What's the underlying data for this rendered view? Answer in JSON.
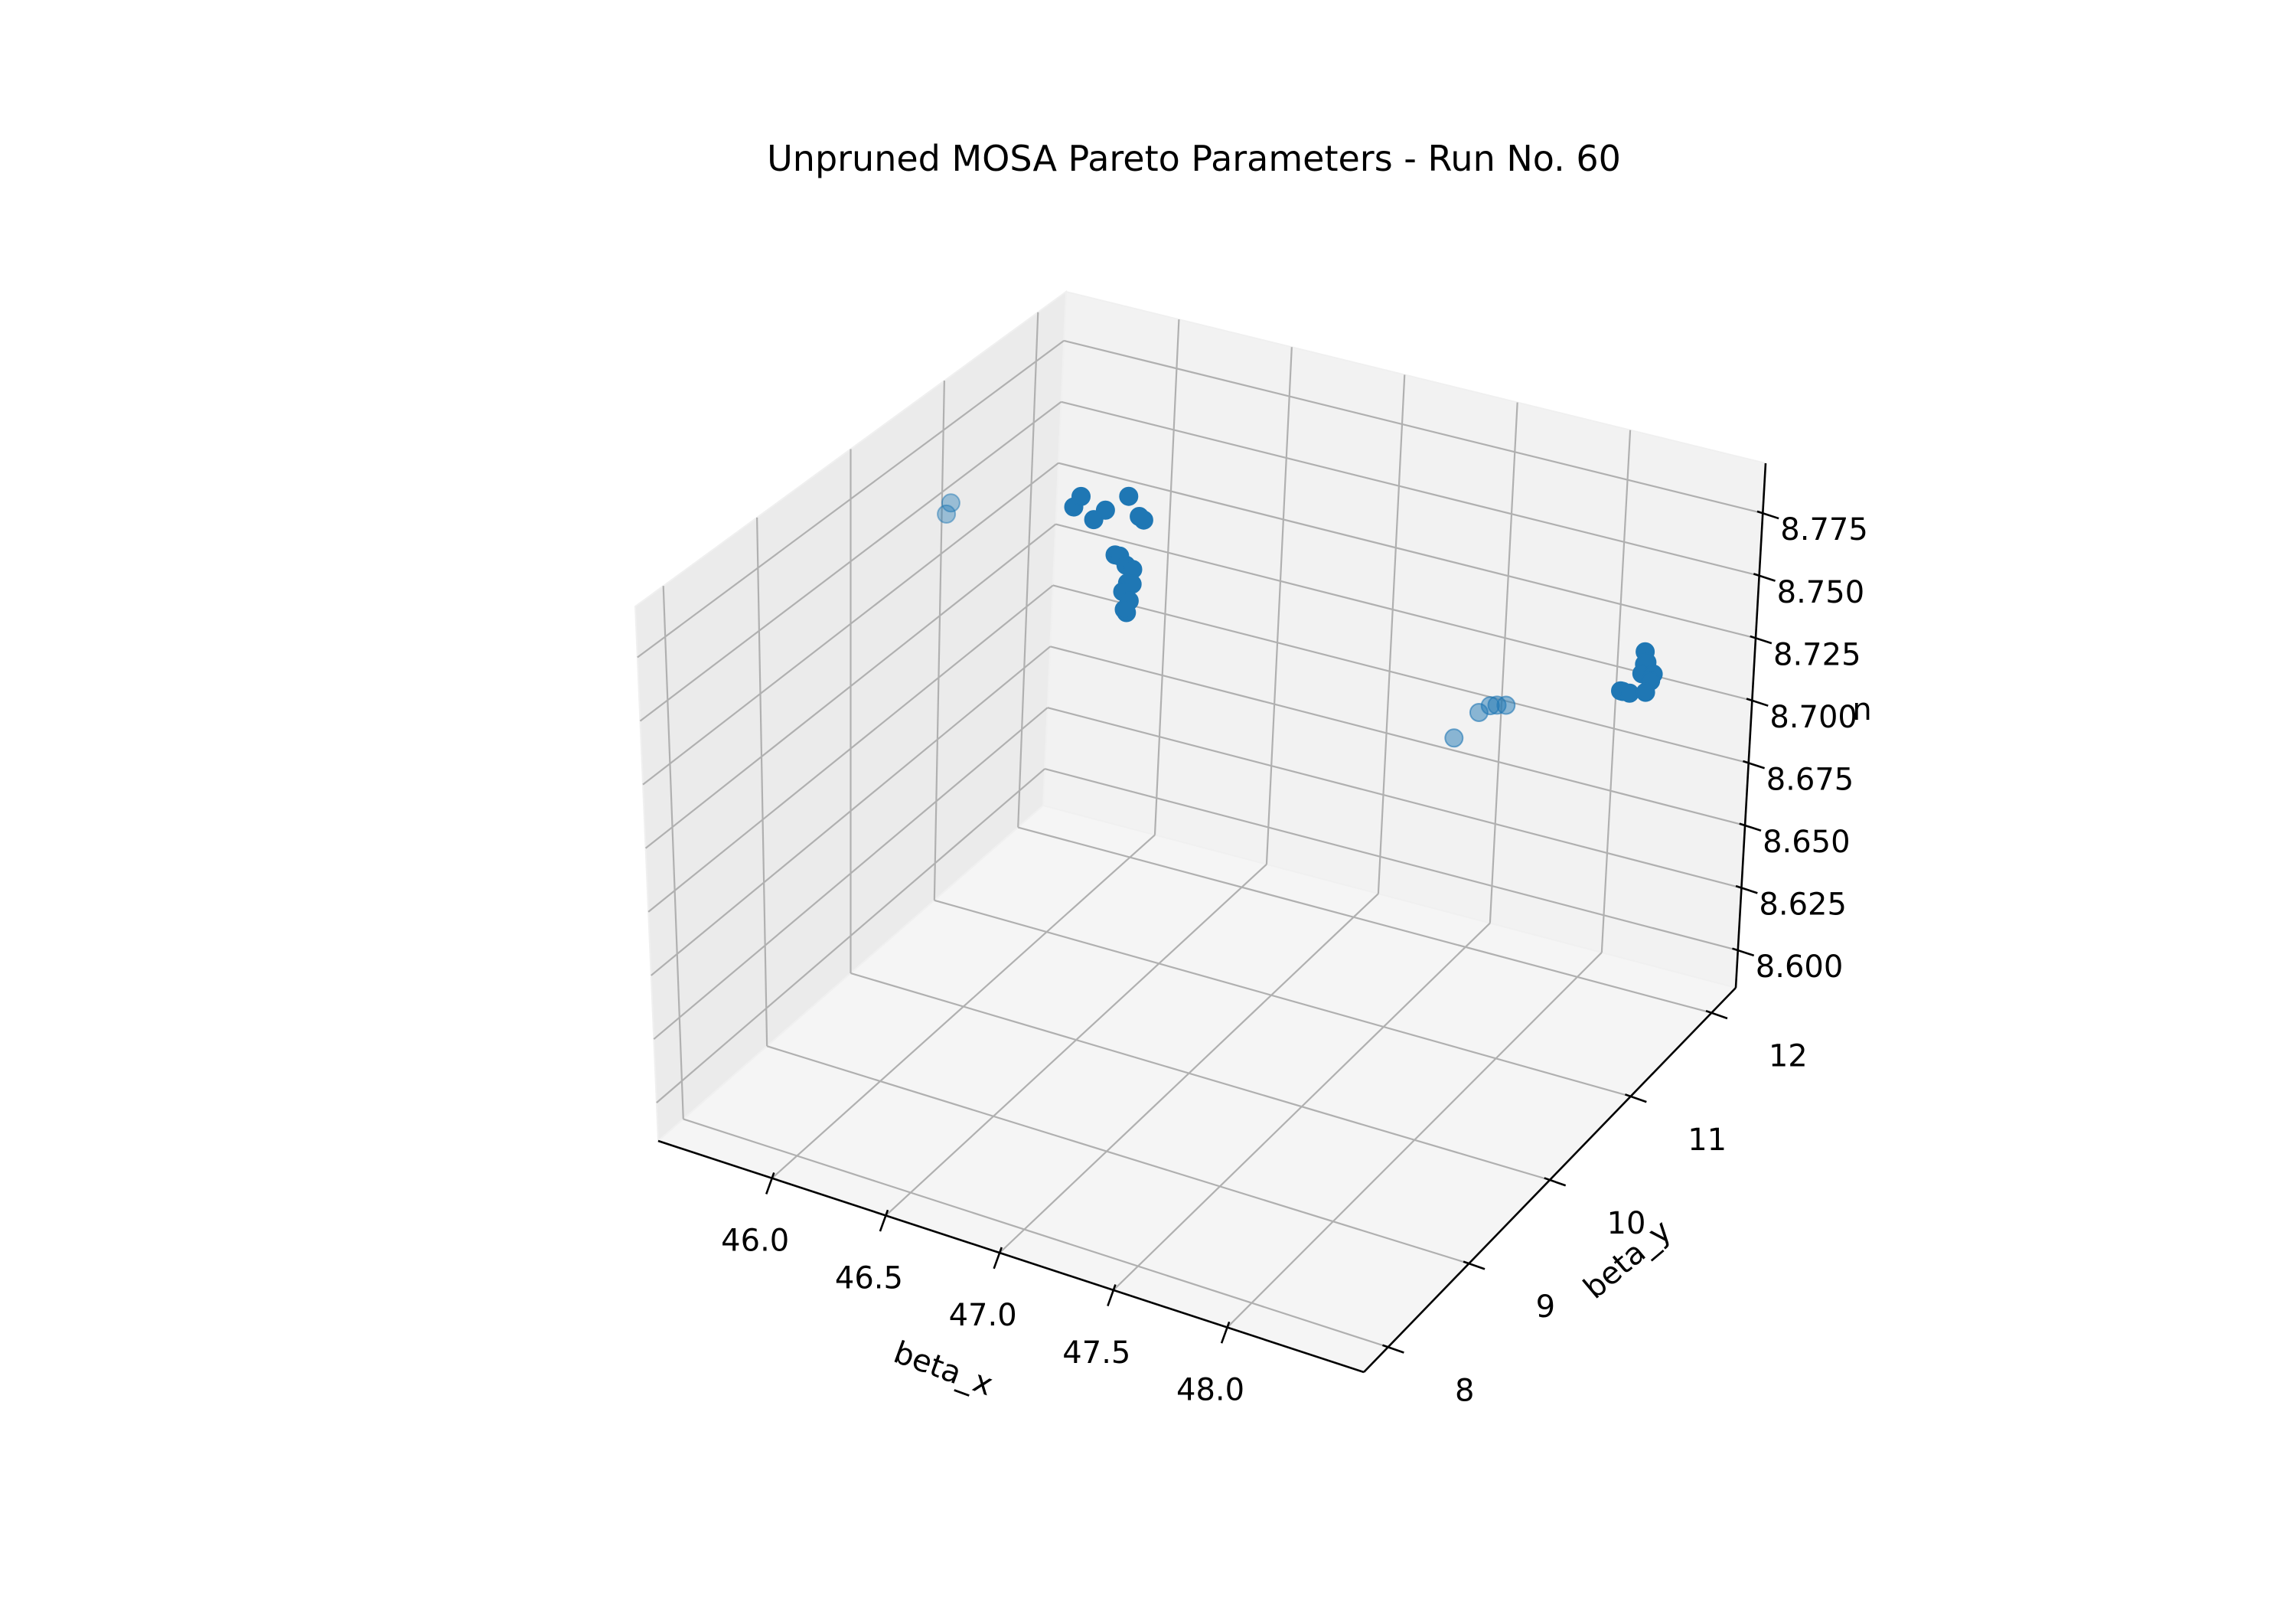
{
  "chart_data": {
    "type": "scatter",
    "projection": "3d",
    "title": "Unpruned MOSA Pareto Parameters - Run No. 60",
    "xlabel": "beta_x",
    "ylabel": "beta_y",
    "zlabel": "n",
    "xlim": [
      45.5,
      48.6
    ],
    "ylim": [
      7.7,
      12.3
    ],
    "zlim": [
      8.585,
      8.795
    ],
    "x_ticks": [
      {
        "value": 46.0,
        "label": "46.0"
      },
      {
        "value": 46.5,
        "label": "46.5"
      },
      {
        "value": 47.0,
        "label": "47.0"
      },
      {
        "value": 47.5,
        "label": "47.5"
      },
      {
        "value": 48.0,
        "label": "48.0"
      }
    ],
    "y_ticks": [
      {
        "value": 8,
        "label": "8"
      },
      {
        "value": 9,
        "label": "9"
      },
      {
        "value": 10,
        "label": "10"
      },
      {
        "value": 11,
        "label": "11"
      },
      {
        "value": 12,
        "label": "12"
      }
    ],
    "z_ticks": [
      {
        "value": 8.6,
        "label": "8.600"
      },
      {
        "value": 8.625,
        "label": "8.625"
      },
      {
        "value": 8.65,
        "label": "8.650"
      },
      {
        "value": 8.675,
        "label": "8.675"
      },
      {
        "value": 8.7,
        "label": "8.700"
      },
      {
        "value": 8.725,
        "label": "8.725"
      },
      {
        "value": 8.75,
        "label": "8.750"
      },
      {
        "value": 8.775,
        "label": "8.775"
      }
    ],
    "grid": true,
    "marker_color": "#1f77b4",
    "points": [
      {
        "x": 45.71,
        "y": 11.95,
        "z": 8.722
      },
      {
        "x": 45.8,
        "y": 11.95,
        "z": 8.719
      },
      {
        "x": 45.74,
        "y": 11.95,
        "z": 8.727
      },
      {
        "x": 45.85,
        "y": 11.95,
        "z": 8.724
      },
      {
        "x": 46.02,
        "y": 11.95,
        "z": 8.724
      },
      {
        "x": 46.0,
        "y": 11.95,
        "z": 8.725
      },
      {
        "x": 45.95,
        "y": 11.95,
        "z": 8.732
      },
      {
        "x": 45.9,
        "y": 11.95,
        "z": 8.707
      },
      {
        "x": 45.92,
        "y": 11.95,
        "z": 8.707
      },
      {
        "x": 45.95,
        "y": 11.95,
        "z": 8.704
      },
      {
        "x": 45.98,
        "y": 11.95,
        "z": 8.703
      },
      {
        "x": 45.96,
        "y": 11.95,
        "z": 8.697
      },
      {
        "x": 45.98,
        "y": 11.95,
        "z": 8.697
      },
      {
        "x": 45.94,
        "y": 11.95,
        "z": 8.693
      },
      {
        "x": 45.97,
        "y": 11.95,
        "z": 8.69
      },
      {
        "x": 45.96,
        "y": 11.95,
        "z": 8.685
      },
      {
        "x": 45.95,
        "y": 11.95,
        "z": 8.686
      },
      {
        "x": 48.25,
        "y": 11.95,
        "z": 8.723
      },
      {
        "x": 48.25,
        "y": 11.95,
        "z": 8.718
      },
      {
        "x": 48.26,
        "y": 11.95,
        "z": 8.719
      },
      {
        "x": 48.24,
        "y": 11.95,
        "z": 8.714
      },
      {
        "x": 48.29,
        "y": 11.95,
        "z": 8.715
      },
      {
        "x": 48.28,
        "y": 11.95,
        "z": 8.712
      },
      {
        "x": 48.15,
        "y": 11.95,
        "z": 8.705
      },
      {
        "x": 48.16,
        "y": 11.95,
        "z": 8.705
      },
      {
        "x": 48.19,
        "y": 11.95,
        "z": 8.705
      },
      {
        "x": 48.26,
        "y": 11.95,
        "z": 8.707
      },
      {
        "x": 48.21,
        "y": 10.4,
        "z": 8.751
      },
      {
        "x": 48.25,
        "y": 10.4,
        "z": 8.752
      },
      {
        "x": 48.18,
        "y": 10.4,
        "z": 8.75
      },
      {
        "x": 48.13,
        "y": 10.4,
        "z": 8.746
      },
      {
        "x": 48.02,
        "y": 10.4,
        "z": 8.733
      },
      {
        "x": 46.05,
        "y": 9.75,
        "z": 8.795
      },
      {
        "x": 46.03,
        "y": 9.75,
        "z": 8.79
      }
    ]
  }
}
